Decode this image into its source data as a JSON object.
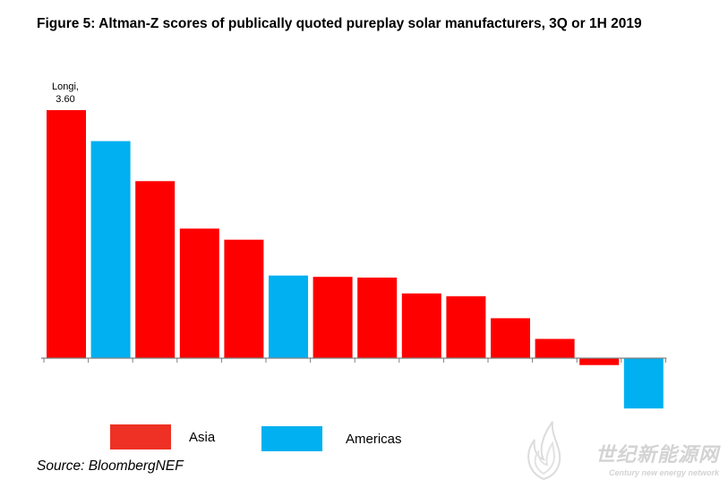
{
  "title": "Figure 5:  Altman-Z scores of publically quoted pureplay solar manufacturers, 3Q or 1H 2019",
  "source": "Source: BloombergNEF",
  "watermark": {
    "main": "世纪新能源网",
    "sub": "Century new energy network"
  },
  "colors": {
    "asia": "#ff0000",
    "americas": "#00b0f0",
    "axis": "#7f7f7f",
    "legend_asia": "#ee3124",
    "legend_americas": "#00b0f0"
  },
  "legend": [
    {
      "label": "Asia",
      "color": "#ee3124"
    },
    {
      "label": "Americas",
      "color": "#00b0f0"
    }
  ],
  "chart_data": {
    "type": "bar",
    "title": "Figure 5:  Altman-Z scores of publically quoted pureplay solar manufacturers, 3Q or 1H 2019",
    "xlabel": "",
    "ylabel": "",
    "ylim": [
      -0.8,
      3.6
    ],
    "grid": false,
    "legend_position": "bottom",
    "values": [
      3.6,
      3.15,
      2.57,
      1.88,
      1.72,
      1.2,
      1.18,
      1.17,
      0.94,
      0.9,
      0.58,
      0.28,
      -0.1,
      -0.73
    ],
    "regions": [
      "Asia",
      "Americas",
      "Asia",
      "Asia",
      "Asia",
      "Americas",
      "Asia",
      "Asia",
      "Asia",
      "Asia",
      "Asia",
      "Asia",
      "Asia",
      "Americas"
    ],
    "annotations": [
      {
        "index": 0,
        "lines": [
          "Longi,",
          "3.60"
        ]
      }
    ]
  }
}
